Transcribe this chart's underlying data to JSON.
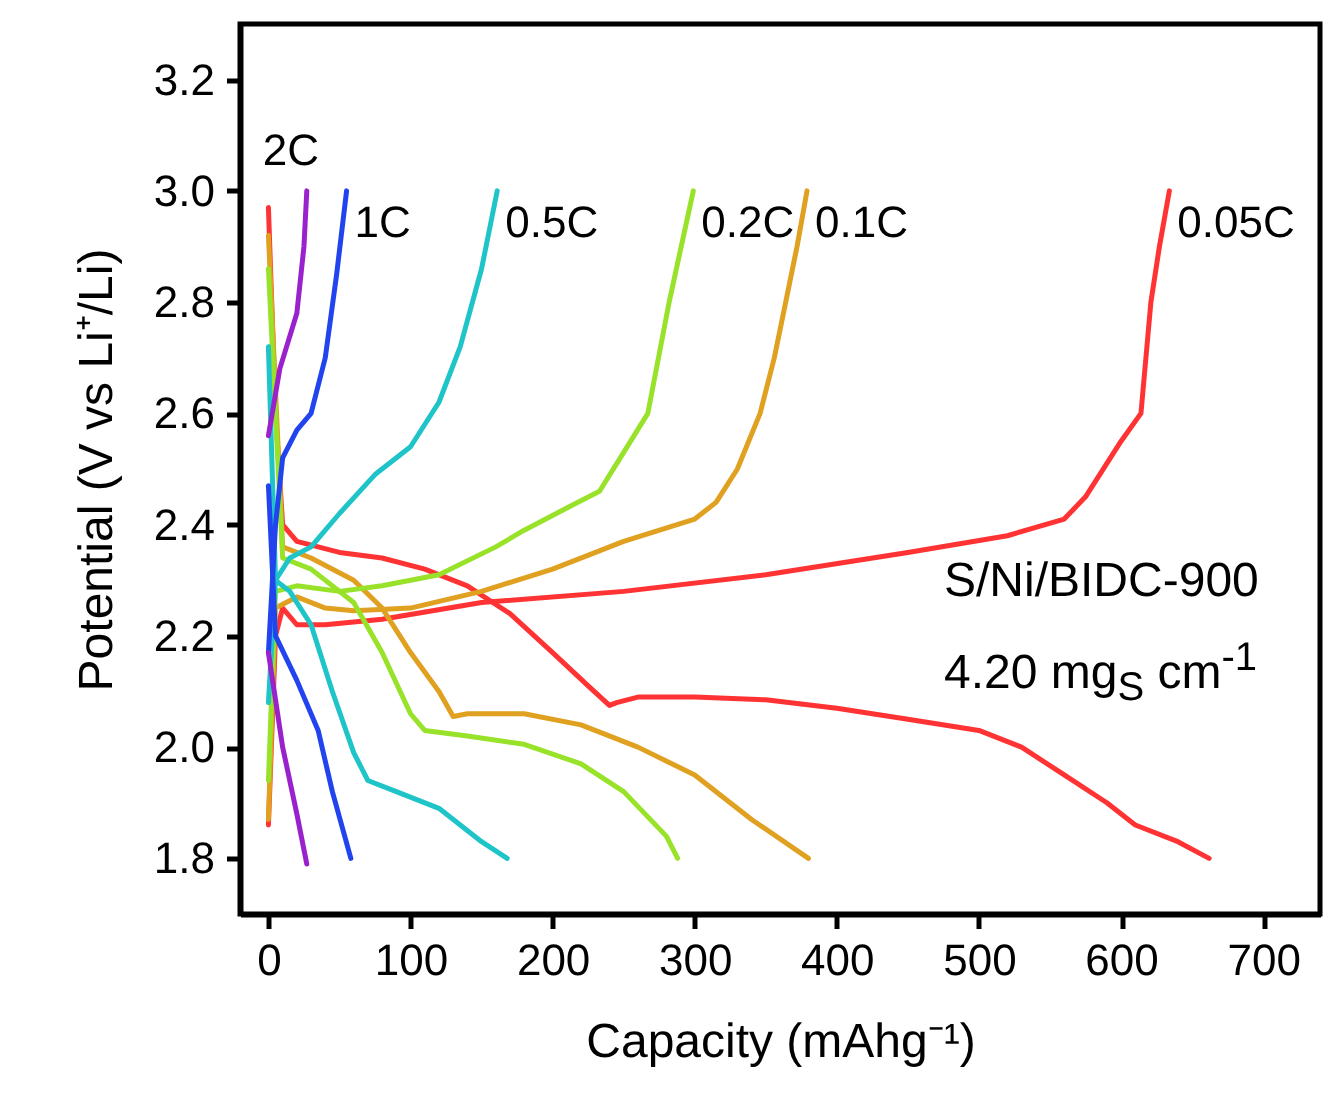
{
  "chart_data": {
    "type": "line",
    "xlabel": "Capacity (mAhg⁻¹)",
    "ylabel": "Potential (V vs Li⁺/Li)",
    "xlim": [
      -20,
      740
    ],
    "ylim": [
      1.7,
      3.3
    ],
    "xticks": [
      0,
      100,
      200,
      300,
      400,
      500,
      600,
      700
    ],
    "yticks": [
      1.8,
      {
        "value": 2,
        "label": "2.0"
      },
      2.2,
      2.4,
      2.6,
      2.8,
      {
        "value": 3,
        "label": "3.0"
      },
      3.2
    ],
    "grid": false,
    "line_style": "solid",
    "marker": "none",
    "annotations": [
      "S/Ni/BIDC-900",
      "4.20 mg$_{S}$ cm$^{-1}$"
    ],
    "series": [
      {
        "color": "#ff3333",
        "x": [
          0,
          5,
          10,
          20,
          50,
          80,
          110,
          140,
          170,
          200,
          225,
          240,
          245,
          260,
          300,
          350,
          400,
          450,
          500,
          530,
          560,
          590,
          610,
          640,
          662
        ],
        "values": [
          2.97,
          2.6,
          2.4,
          2.37,
          2.35,
          2.34,
          2.32,
          2.29,
          2.24,
          2.17,
          2.11,
          2.075,
          2.08,
          2.09,
          2.09,
          2.085,
          2.07,
          2.05,
          2.03,
          2.0,
          1.95,
          1.9,
          1.86,
          1.83,
          1.8
        ]
      },
      {
        "name": "0.05C",
        "color": "#ff3333",
        "x": [
          0,
          5,
          10,
          20,
          40,
          80,
          150,
          250,
          350,
          450,
          520,
          560,
          575,
          600,
          614,
          621,
          627,
          634
        ],
        "values": [
          1.86,
          2.2,
          2.25,
          2.22,
          2.22,
          2.23,
          2.26,
          2.28,
          2.31,
          2.35,
          2.38,
          2.41,
          2.45,
          2.55,
          2.6,
          2.8,
          2.9,
          3.0
        ]
      },
      {
        "color": "#e0a020",
        "x": [
          0,
          10,
          30,
          60,
          80,
          100,
          120,
          130,
          140,
          180,
          220,
          260,
          300,
          340,
          380
        ],
        "values": [
          2.92,
          2.36,
          2.34,
          2.3,
          2.25,
          2.17,
          2.1,
          2.055,
          2.06,
          2.06,
          2.04,
          2.0,
          1.95,
          1.87,
          1.8
        ]
      },
      {
        "name": "0.1C",
        "color": "#e0a020",
        "x": [
          0,
          5,
          20,
          40,
          60,
          100,
          150,
          200,
          250,
          300,
          315,
          330,
          346,
          356,
          364,
          372,
          379
        ],
        "values": [
          1.87,
          2.25,
          2.27,
          2.25,
          2.245,
          2.25,
          2.28,
          2.32,
          2.37,
          2.41,
          2.44,
          2.5,
          2.6,
          2.7,
          2.8,
          2.9,
          3.0
        ]
      },
      {
        "color": "#99e22a",
        "x": [
          0,
          10,
          30,
          60,
          80,
          100,
          110,
          140,
          180,
          220,
          250,
          280,
          288
        ],
        "values": [
          2.86,
          2.34,
          2.32,
          2.26,
          2.17,
          2.06,
          2.03,
          2.02,
          2.005,
          1.97,
          1.92,
          1.84,
          1.8
        ]
      },
      {
        "name": "0.2C",
        "color": "#99e22a",
        "x": [
          0,
          5,
          20,
          50,
          80,
          120,
          160,
          180,
          210,
          233,
          250,
          267,
          282,
          299
        ],
        "values": [
          1.94,
          2.28,
          2.29,
          2.28,
          2.29,
          2.31,
          2.36,
          2.39,
          2.43,
          2.46,
          2.53,
          2.6,
          2.8,
          3.0
        ]
      },
      {
        "color": "#1fc4c8",
        "x": [
          0,
          5,
          15,
          30,
          45,
          60,
          70,
          90,
          120,
          150,
          168
        ],
        "values": [
          2.72,
          2.3,
          2.28,
          2.22,
          2.1,
          1.99,
          1.94,
          1.92,
          1.89,
          1.83,
          1.8
        ]
      },
      {
        "name": "0.5C",
        "color": "#1fc4c8",
        "x": [
          0,
          5,
          15,
          30,
          50,
          75,
          100,
          120,
          135,
          150,
          161
        ],
        "values": [
          2.08,
          2.3,
          2.34,
          2.36,
          2.42,
          2.49,
          2.54,
          2.62,
          2.72,
          2.86,
          3.0
        ]
      },
      {
        "color": "#2244ee",
        "x": [
          0,
          5,
          20,
          35,
          45,
          58
        ],
        "values": [
          2.47,
          2.2,
          2.12,
          2.03,
          1.92,
          1.8
        ]
      },
      {
        "name": "1C",
        "color": "#2244ee",
        "x": [
          0,
          5,
          10,
          20,
          30,
          40,
          48,
          55
        ],
        "values": [
          2.17,
          2.4,
          2.52,
          2.57,
          2.6,
          2.7,
          2.85,
          3.0
        ]
      },
      {
        "color": "#9922cc",
        "x": [
          0,
          10,
          20,
          27
        ],
        "values": [
          2.17,
          2.0,
          1.88,
          1.79
        ]
      },
      {
        "name": "2C",
        "color": "#9922cc",
        "x": [
          0,
          8,
          20,
          25,
          27
        ],
        "values": [
          2.56,
          2.68,
          2.78,
          2.9,
          3.0
        ]
      }
    ]
  }
}
